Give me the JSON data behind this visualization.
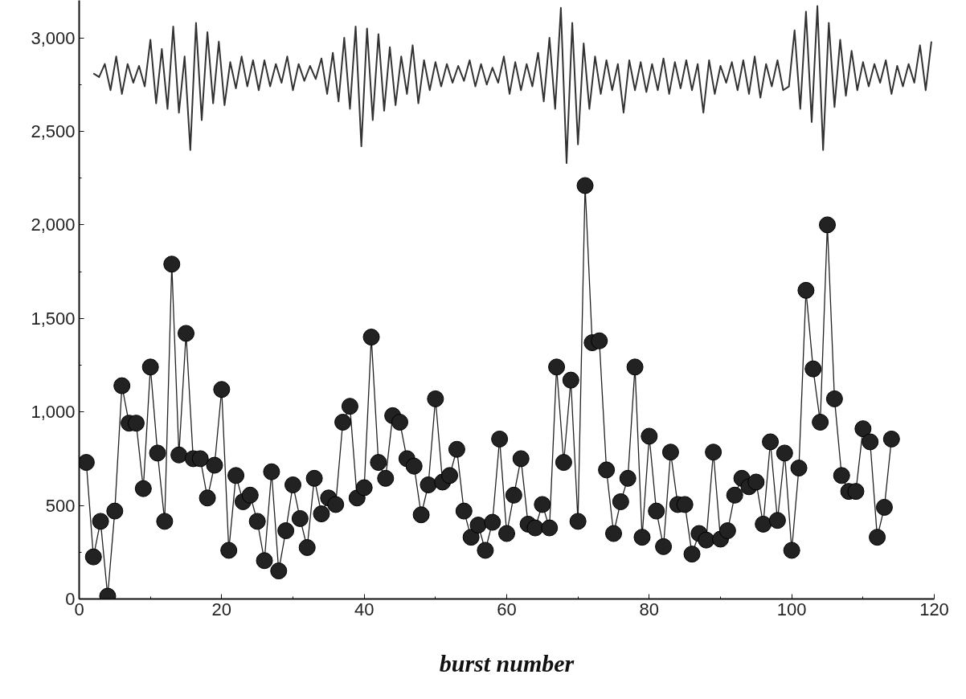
{
  "chart_data": {
    "type": "line",
    "xlabel": "burst number",
    "xlim": [
      0,
      120
    ],
    "ylim": [
      0,
      3200
    ],
    "xticks": [
      0,
      20,
      40,
      60,
      80,
      100,
      120
    ],
    "yticks": [
      0,
      500,
      {
        "value": 1000,
        "label": "1,000"
      },
      {
        "value": 1500,
        "label": "1,500"
      },
      {
        "value": 2000,
        "label": "2,000"
      },
      {
        "value": 2500,
        "label": "2,500"
      },
      {
        "value": 3000,
        "label": "3,000"
      }
    ],
    "series": [
      {
        "marker": "none",
        "color": "#333333",
        "x": [
          2,
          2.8,
          3.6,
          4.4,
          5.2,
          6,
          6.8,
          7.6,
          8.4,
          9.2,
          10,
          10.8,
          11.6,
          12.4,
          13.2,
          14,
          14.8,
          15.6,
          16.4,
          17.2,
          18,
          18.8,
          19.6,
          20.4,
          21.2,
          22,
          22.8,
          23.6,
          24.4,
          25.2,
          26,
          26.8,
          27.6,
          28.4,
          29.2,
          30,
          30.8,
          31.6,
          32.4,
          33.2,
          34,
          34.8,
          35.6,
          36.4,
          37.2,
          38,
          38.8,
          39.6,
          40.4,
          41.2,
          42,
          42.8,
          43.6,
          44.4,
          45.2,
          46,
          46.8,
          47.6,
          48.4,
          49.2,
          50,
          50.8,
          51.6,
          52.4,
          53.2,
          54,
          54.8,
          55.6,
          56.4,
          57.2,
          58,
          58.8,
          59.6,
          60.4,
          61.2,
          62,
          62.8,
          63.6,
          64.4,
          65.2,
          66,
          66.8,
          67.6,
          68.4,
          69.2,
          70,
          70.8,
          71.6,
          72.4,
          73.2,
          74,
          74.8,
          75.6,
          76.4,
          77.2,
          78,
          78.8,
          79.6,
          80.4,
          81.2,
          82,
          82.8,
          83.6,
          84.4,
          85.2,
          86,
          86.8,
          87.6,
          88.4,
          89.2,
          90,
          90.8,
          91.6,
          92.4,
          93.2,
          94,
          94.8,
          95.6,
          96.4,
          97.2,
          98,
          98.8,
          99.6,
          100.4,
          101.2,
          102,
          102.8,
          103.6,
          104.4,
          105.2,
          106,
          106.8,
          107.6,
          108.4,
          109.2,
          110,
          110.8,
          111.6,
          112.4,
          113.2,
          114,
          114.8,
          115.6,
          116.4,
          117.2,
          118,
          118.8,
          119.6
        ],
        "values": [
          2810,
          2790,
          2860,
          2720,
          2900,
          2700,
          2860,
          2760,
          2850,
          2740,
          2990,
          2650,
          2940,
          2620,
          3060,
          2600,
          2900,
          2400,
          3080,
          2560,
          3030,
          2650,
          2980,
          2640,
          2870,
          2730,
          2900,
          2740,
          2880,
          2720,
          2880,
          2740,
          2860,
          2760,
          2900,
          2720,
          2860,
          2770,
          2850,
          2780,
          2890,
          2700,
          2920,
          2660,
          3000,
          2620,
          3060,
          2420,
          3050,
          2560,
          3020,
          2610,
          2950,
          2640,
          2900,
          2700,
          2960,
          2650,
          2880,
          2720,
          2870,
          2740,
          2860,
          2760,
          2850,
          2770,
          2880,
          2740,
          2860,
          2750,
          2840,
          2760,
          2900,
          2700,
          2870,
          2720,
          2860,
          2740,
          2920,
          2660,
          3000,
          2620,
          3160,
          2330,
          3080,
          2430,
          2970,
          2620,
          2900,
          2700,
          2880,
          2720,
          2860,
          2600,
          2880,
          2720,
          2870,
          2710,
          2860,
          2720,
          2890,
          2700,
          2870,
          2730,
          2880,
          2720,
          2860,
          2600,
          2880,
          2700,
          2850,
          2760,
          2870,
          2720,
          2880,
          2700,
          2900,
          2680,
          2860,
          2740,
          2880,
          2720,
          2740,
          3040,
          2620,
          3140,
          2550,
          3170,
          2400,
          3080,
          2630,
          2990,
          2690,
          2930,
          2720,
          2870,
          2740,
          2860,
          2760,
          2880,
          2700,
          2850,
          2740,
          2860,
          2760,
          2960,
          2720,
          2980
        ]
      },
      {
        "marker": "circle",
        "color": "#222222",
        "x": [
          1,
          2,
          3,
          4,
          5,
          6,
          7,
          8,
          9,
          10,
          11,
          12,
          13,
          14,
          15,
          16,
          17,
          18,
          19,
          20,
          21,
          22,
          23,
          24,
          25,
          26,
          27,
          28,
          29,
          30,
          31,
          32,
          33,
          34,
          35,
          36,
          37,
          38,
          39,
          40,
          41,
          42,
          43,
          44,
          45,
          46,
          47,
          48,
          49,
          50,
          51,
          52,
          53,
          54,
          55,
          56,
          57,
          58,
          59,
          60,
          61,
          62,
          63,
          64,
          65,
          66,
          67,
          68,
          69,
          70,
          71,
          72,
          73,
          74,
          75,
          76,
          77,
          78,
          79,
          80,
          81,
          82,
          83,
          84,
          85,
          86,
          87,
          88,
          89,
          90,
          91,
          92,
          93,
          94,
          95,
          96,
          97,
          98,
          99,
          100,
          101,
          102,
          103,
          104,
          105,
          106,
          107,
          108,
          109,
          110,
          111,
          112,
          113,
          114
        ],
        "values": [
          730,
          225,
          415,
          15,
          470,
          1140,
          940,
          940,
          590,
          1240,
          780,
          415,
          1790,
          770,
          1420,
          750,
          750,
          540,
          715,
          1120,
          260,
          660,
          520,
          555,
          415,
          205,
          680,
          150,
          365,
          610,
          430,
          275,
          645,
          455,
          540,
          505,
          945,
          1030,
          540,
          595,
          1400,
          730,
          645,
          980,
          945,
          750,
          710,
          450,
          610,
          1070,
          625,
          660,
          800,
          470,
          330,
          395,
          260,
          410,
          855,
          350,
          555,
          750,
          400,
          380,
          505,
          380,
          1240,
          730,
          1170,
          415,
          2210,
          1370,
          1380,
          690,
          350,
          520,
          645,
          1240,
          330,
          870,
          470,
          280,
          785,
          505,
          505,
          240,
          350,
          315,
          785,
          320,
          365,
          555,
          645,
          600,
          625,
          400,
          840,
          420,
          780,
          260,
          700,
          1650,
          1230,
          945,
          2000,
          1070,
          660,
          575,
          575,
          910,
          840,
          330,
          490,
          855
        ]
      }
    ]
  }
}
